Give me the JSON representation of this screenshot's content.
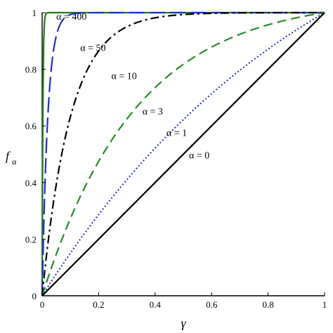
{
  "chart_data": {
    "type": "line",
    "xlabel": "γ",
    "ylabel_main": "f",
    "ylabel_sub": "α",
    "xlim": [
      0,
      1
    ],
    "ylim": [
      0,
      1
    ],
    "x_ticks": [
      "0",
      "0.2",
      "0.4",
      "0.6",
      "0.8",
      "1"
    ],
    "y_ticks": [
      "0",
      "0.2",
      "0.4",
      "0.6",
      "0.8",
      "1"
    ],
    "grid": false,
    "legend": "inline labels",
    "series": [
      {
        "name": "α = 400",
        "alpha": 400,
        "color": "#1e7b1e",
        "style": "solid"
      },
      {
        "name": "α = 50",
        "alpha": 50,
        "color": "#1f2fc4",
        "style": "longdash"
      },
      {
        "name": "α = 10",
        "alpha": 10,
        "color": "#000000",
        "style": "dashdot"
      },
      {
        "name": "α = 3",
        "alpha": 3,
        "color": "#2a8a2a",
        "style": "dash"
      },
      {
        "name": "α = 1",
        "alpha": 1,
        "color": "#1f2fc4",
        "style": "dot"
      },
      {
        "name": "α = 0",
        "alpha": 0,
        "color": "#000000",
        "style": "solid"
      }
    ],
    "annotations": [
      {
        "text": "α = 400",
        "x": 0.05,
        "y": 0.975
      },
      {
        "text": "α = 50",
        "x": 0.135,
        "y": 0.865
      },
      {
        "text": "α = 10",
        "x": 0.245,
        "y": 0.765
      },
      {
        "text": "α = 3",
        "x": 0.355,
        "y": 0.64
      },
      {
        "text": "α = 1",
        "x": 0.44,
        "y": 0.565
      },
      {
        "text": "α = 0",
        "x": 0.52,
        "y": 0.485
      }
    ]
  }
}
